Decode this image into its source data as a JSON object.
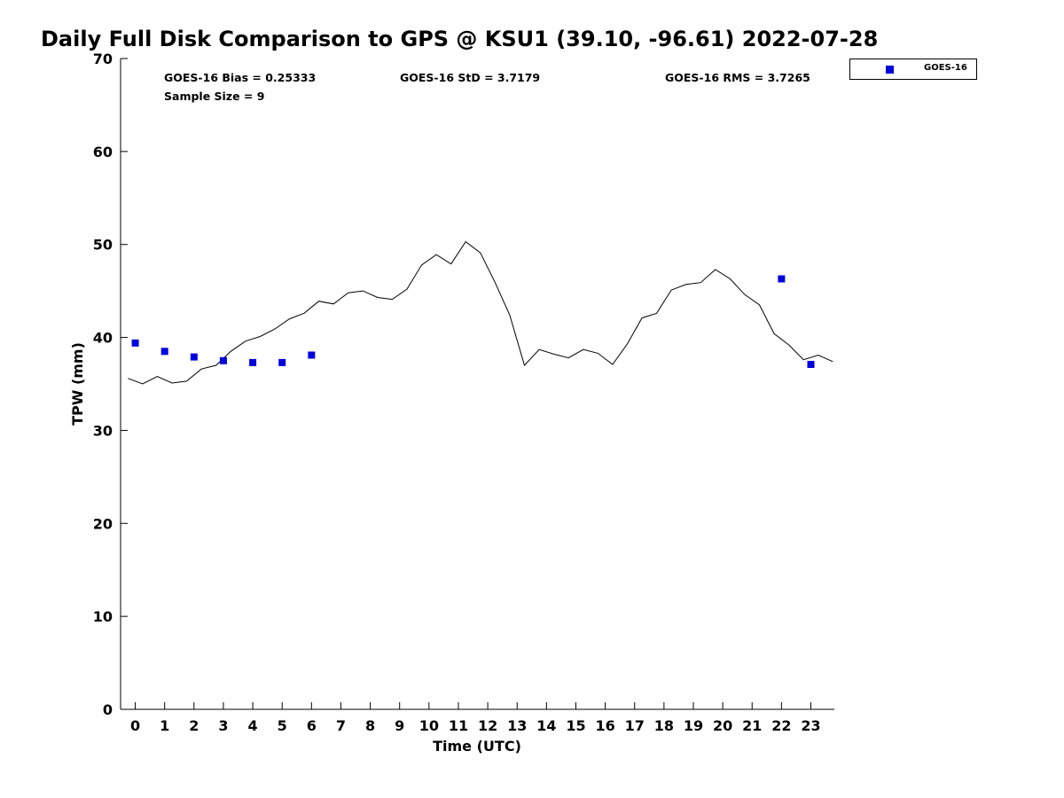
{
  "chart_data": {
    "type": "line+scatter",
    "title": "Daily Full Disk Comparison to GPS @ KSU1 (39.10, -96.61) 2022-07-28",
    "xlabel": "Time (UTC)",
    "ylabel": "TPW (mm)",
    "xlim": [
      -0.5,
      23.8
    ],
    "ylim": [
      0,
      70
    ],
    "x_ticks": [
      0,
      1,
      2,
      3,
      4,
      5,
      6,
      7,
      8,
      9,
      10,
      11,
      12,
      13,
      14,
      15,
      16,
      17,
      18,
      19,
      20,
      21,
      22,
      23
    ],
    "y_ticks": [
      0,
      10,
      20,
      30,
      40,
      50,
      60,
      70
    ],
    "grid": false,
    "stats": {
      "bias": "GOES-16 Bias = 0.25333",
      "std": "GOES-16 StD = 3.7179",
      "rms": "GOES-16 RMS = 3.7265",
      "sample_size": "Sample Size = 9"
    },
    "legend": {
      "position": "outside-top-right",
      "entries": [
        "GOES-16"
      ]
    },
    "series": [
      {
        "name": "GPS",
        "kind": "line",
        "color": "#000000",
        "x": [
          -0.25,
          0.25,
          0.75,
          1.25,
          1.75,
          2.25,
          2.75,
          3.25,
          3.75,
          4.25,
          4.75,
          5.25,
          5.75,
          6.25,
          6.75,
          7.25,
          7.75,
          8.25,
          8.75,
          9.25,
          9.75,
          10.25,
          10.75,
          11.25,
          11.75,
          12.25,
          12.75,
          13.25,
          13.75,
          14.25,
          14.75,
          15.25,
          15.75,
          16.25,
          16.75,
          17.25,
          17.75,
          18.25,
          18.75,
          19.25,
          19.75,
          20.25,
          20.75,
          21.25,
          21.75,
          22.25,
          22.75,
          23.25,
          23.75
        ],
        "y": [
          35.6,
          35.0,
          35.8,
          35.1,
          35.3,
          36.6,
          37.0,
          38.5,
          39.6,
          40.1,
          40.9,
          42.0,
          42.6,
          43.9,
          43.6,
          44.8,
          45.0,
          44.3,
          44.1,
          45.2,
          47.8,
          48.9,
          47.9,
          50.3,
          49.1,
          45.9,
          42.4,
          37.0,
          38.7,
          38.2,
          37.8,
          38.7,
          38.3,
          37.1,
          39.3,
          42.1,
          42.6,
          45.1,
          45.7,
          45.9,
          47.3,
          46.3,
          44.6,
          43.5,
          40.4,
          39.2,
          37.6,
          38.1,
          37.4
        ]
      },
      {
        "name": "GOES-16",
        "kind": "scatter",
        "marker": "square",
        "color": "#0000dd",
        "x": [
          0,
          1,
          2,
          3,
          4,
          5,
          6,
          22,
          23
        ],
        "y": [
          39.4,
          38.5,
          37.9,
          37.5,
          37.3,
          37.3,
          38.1,
          46.3,
          37.1
        ]
      }
    ]
  }
}
